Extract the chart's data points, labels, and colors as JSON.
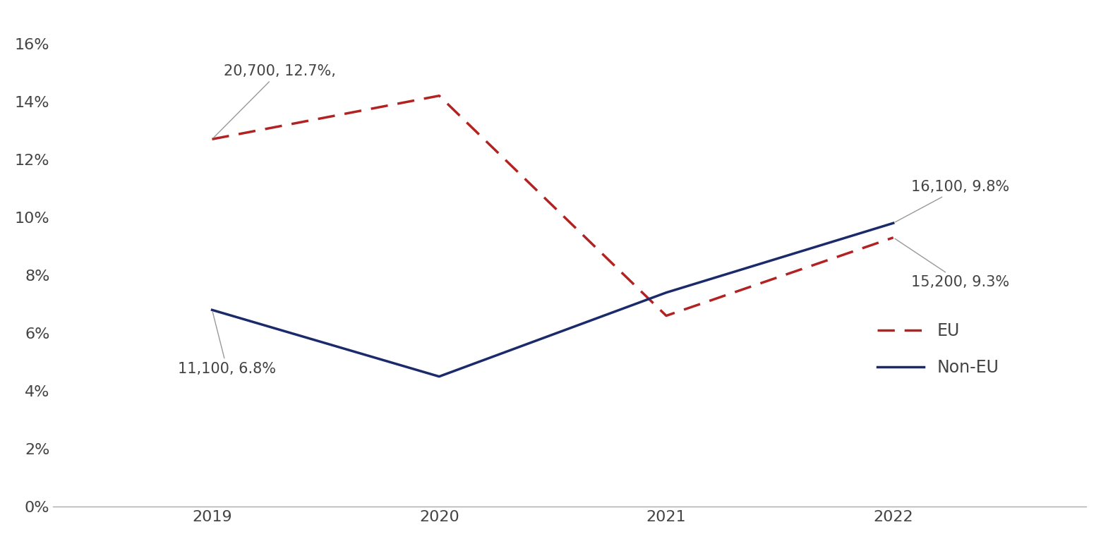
{
  "years": [
    2019,
    2020,
    2021,
    2022
  ],
  "eu_values": [
    0.127,
    0.142,
    0.066,
    0.093
  ],
  "noneu_values": [
    0.068,
    0.045,
    0.074,
    0.098
  ],
  "eu_color": "#B22222",
  "noneu_color": "#1B2A6B",
  "ylim": [
    0.0,
    0.17
  ],
  "yticks": [
    0.0,
    0.02,
    0.04,
    0.06,
    0.08,
    0.1,
    0.12,
    0.14,
    0.16
  ],
  "legend_eu_label": "EU",
  "legend_noneu_label": "Non-EU",
  "background_color": "#FFFFFF",
  "line_width": 2.5,
  "font_size_ticks": 16,
  "font_size_annot": 15,
  "tick_color": "#444444",
  "annot_color": "#444444",
  "arrow_color": "#999999",
  "xlim_left": 2018.3,
  "xlim_right": 2022.85
}
